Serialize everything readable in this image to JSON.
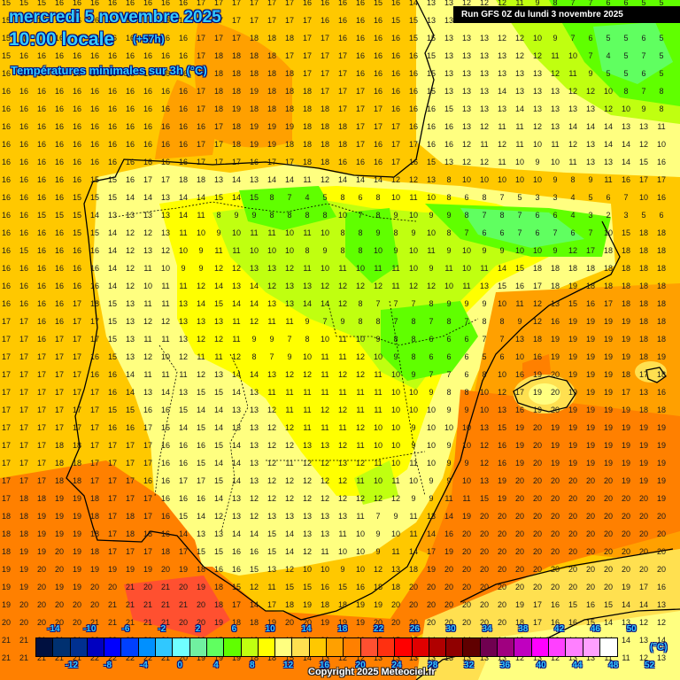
{
  "header": {
    "date": "mercredi 5 novembre 2025",
    "time": "10:00 locale",
    "lead": "(+57h)",
    "variable": "Températures minimales sur 3h (°C)",
    "run": "Run GFS 0Z du lundi 3 novembre 2025"
  },
  "legend": {
    "unit": "(°C)",
    "top_labels": [
      "-14",
      "-10",
      "-6",
      "-2",
      "2",
      "6",
      "10",
      "14",
      "18",
      "22",
      "26",
      "30",
      "34",
      "38",
      "42",
      "46",
      "50"
    ],
    "bottom_labels": [
      "-12",
      "-8",
      "-4",
      "0",
      "4",
      "8",
      "12",
      "16",
      "20",
      "24",
      "28",
      "32",
      "36",
      "40",
      "44",
      "48",
      "52"
    ],
    "colors": [
      "#001040",
      "#003070",
      "#003090",
      "#0000c0",
      "#0000ff",
      "#0040ff",
      "#0090ff",
      "#30c8ff",
      "#70ffff",
      "#70f0a0",
      "#60ff60",
      "#60ff00",
      "#c0ff10",
      "#ffff00",
      "#ffff80",
      "#ffe050",
      "#ffc800",
      "#ffa000",
      "#ff8000",
      "#ff5030",
      "#ff3010",
      "#ff0000",
      "#e00000",
      "#b00000",
      "#900000",
      "#600000",
      "#700050",
      "#a00080",
      "#c000c0",
      "#ff00ff",
      "#ff40ff",
      "#ff80ff",
      "#ffa0ff",
      "#ffffff"
    ]
  },
  "footer": {
    "copyright": "Copyright 2025 Meteociel.fr"
  },
  "chart_data": {
    "type": "heatmap",
    "title": "Températures minimales sur 3h (°C)",
    "subtitle": "mercredi 5 novembre 2025 10:00 locale (+57h) — Run GFS 0Z du lundi 3 novembre 2025",
    "region": "Iberian Peninsula / Western Mediterranean",
    "grid_spacing_px": 20,
    "grid": [
      [
        15,
        15,
        15,
        16,
        16,
        16,
        16,
        16,
        16,
        16,
        16,
        17,
        17,
        17,
        17,
        17,
        17,
        16,
        16,
        16,
        16,
        15,
        16,
        14,
        13,
        13,
        12,
        12,
        12,
        11,
        9,
        8,
        7,
        7,
        6,
        6,
        5,
        5
      ],
      [
        15,
        15,
        15,
        16,
        16,
        16,
        16,
        16,
        16,
        16,
        16,
        17,
        17,
        17,
        17,
        17,
        17,
        17,
        16,
        16,
        16,
        16,
        15,
        15,
        13,
        13,
        13,
        12,
        12,
        11,
        11,
        9,
        7,
        5,
        7,
        5,
        7,
        6
      ],
      [
        15,
        16,
        16,
        16,
        16,
        16,
        16,
        16,
        16,
        16,
        16,
        17,
        17,
        17,
        18,
        18,
        18,
        17,
        17,
        16,
        16,
        16,
        16,
        15,
        15,
        13,
        13,
        13,
        12,
        12,
        10,
        9,
        7,
        6,
        5,
        5,
        6,
        5
      ],
      [
        15,
        16,
        16,
        16,
        16,
        16,
        16,
        16,
        16,
        16,
        16,
        17,
        18,
        18,
        18,
        18,
        17,
        17,
        17,
        17,
        16,
        16,
        16,
        16,
        15,
        13,
        13,
        13,
        13,
        12,
        12,
        11,
        10,
        7,
        4,
        5,
        7,
        5
      ],
      [
        16,
        16,
        16,
        16,
        16,
        16,
        16,
        16,
        16,
        16,
        16,
        17,
        18,
        18,
        18,
        18,
        18,
        17,
        17,
        17,
        16,
        16,
        16,
        16,
        15,
        13,
        13,
        13,
        13,
        13,
        13,
        12,
        11,
        9,
        5,
        5,
        6,
        5
      ],
      [
        16,
        16,
        16,
        16,
        16,
        16,
        16,
        16,
        16,
        16,
        16,
        17,
        18,
        18,
        19,
        18,
        18,
        18,
        17,
        17,
        17,
        16,
        16,
        16,
        15,
        13,
        13,
        13,
        14,
        13,
        13,
        13,
        12,
        12,
        10,
        8,
        7,
        8
      ],
      [
        16,
        16,
        16,
        16,
        16,
        16,
        16,
        16,
        16,
        16,
        16,
        17,
        18,
        19,
        18,
        18,
        18,
        18,
        18,
        17,
        17,
        17,
        16,
        16,
        16,
        15,
        13,
        13,
        13,
        14,
        13,
        13,
        13,
        13,
        12,
        10,
        9,
        8
      ],
      [
        16,
        16,
        16,
        16,
        16,
        16,
        16,
        16,
        16,
        16,
        16,
        16,
        17,
        18,
        19,
        19,
        19,
        18,
        18,
        18,
        17,
        17,
        17,
        16,
        16,
        16,
        13,
        12,
        11,
        11,
        12,
        13,
        14,
        14,
        14,
        13,
        13,
        11
      ],
      [
        16,
        16,
        16,
        16,
        16,
        16,
        16,
        16,
        16,
        16,
        16,
        17,
        17,
        18,
        19,
        19,
        18,
        18,
        18,
        18,
        17,
        16,
        17,
        17,
        16,
        16,
        12,
        11,
        12,
        11,
        10,
        11,
        12,
        13,
        14,
        14,
        12,
        10
      ],
      [
        16,
        16,
        16,
        16,
        16,
        16,
        16,
        16,
        16,
        16,
        16,
        17,
        17,
        17,
        16,
        17,
        17,
        18,
        18,
        16,
        16,
        16,
        17,
        16,
        15,
        13,
        12,
        12,
        11,
        10,
        9,
        10,
        11,
        13,
        13,
        14,
        15,
        16
      ],
      [
        16,
        16,
        16,
        16,
        16,
        15,
        15,
        16,
        17,
        17,
        18,
        18,
        13,
        14,
        13,
        14,
        14,
        11,
        12,
        14,
        14,
        14,
        12,
        12,
        13,
        8,
        10,
        10,
        10,
        10,
        10,
        9,
        8,
        9,
        11,
        16,
        17,
        17
      ],
      [
        16,
        16,
        16,
        16,
        15,
        15,
        15,
        14,
        14,
        13,
        14,
        14,
        15,
        14,
        15,
        8,
        7,
        4,
        5,
        8,
        6,
        8,
        10,
        11,
        10,
        8,
        6,
        8,
        7,
        5,
        3,
        3,
        4,
        5,
        6,
        7,
        10,
        16
      ],
      [
        16,
        16,
        15,
        15,
        15,
        14,
        13,
        13,
        13,
        13,
        14,
        11,
        8,
        9,
        9,
        8,
        8,
        8,
        8,
        10,
        7,
        8,
        9,
        10,
        9,
        9,
        8,
        7,
        8,
        7,
        6,
        6,
        4,
        3,
        2,
        3,
        5,
        6
      ],
      [
        16,
        16,
        16,
        16,
        15,
        15,
        14,
        12,
        12,
        13,
        11,
        10,
        9,
        10,
        11,
        11,
        10,
        11,
        10,
        8,
        8,
        9,
        8,
        9,
        10,
        8,
        7,
        6,
        6,
        7,
        6,
        7,
        6,
        7,
        10,
        15,
        18,
        18
      ],
      [
        16,
        15,
        16,
        16,
        16,
        16,
        14,
        12,
        13,
        12,
        10,
        9,
        11,
        11,
        10,
        10,
        10,
        8,
        9,
        8,
        8,
        10,
        9,
        10,
        11,
        9,
        10,
        9,
        9,
        10,
        10,
        9,
        12,
        17,
        18,
        18,
        18,
        18
      ],
      [
        16,
        16,
        16,
        16,
        16,
        16,
        14,
        12,
        11,
        10,
        9,
        9,
        12,
        12,
        13,
        13,
        12,
        11,
        10,
        11,
        10,
        11,
        11,
        10,
        9,
        11,
        10,
        11,
        14,
        15,
        18,
        18,
        18,
        18,
        18,
        18,
        18,
        18
      ],
      [
        16,
        16,
        16,
        16,
        16,
        16,
        14,
        12,
        10,
        11,
        11,
        12,
        14,
        13,
        14,
        12,
        13,
        13,
        12,
        12,
        12,
        12,
        11,
        12,
        12,
        10,
        11,
        13,
        15,
        16,
        17,
        18,
        19,
        18,
        18,
        18,
        18,
        18
      ],
      [
        16,
        16,
        16,
        16,
        17,
        18,
        15,
        13,
        11,
        11,
        13,
        14,
        15,
        14,
        14,
        13,
        13,
        14,
        14,
        12,
        8,
        7,
        7,
        7,
        8,
        9,
        9,
        9,
        10,
        11,
        12,
        13,
        15,
        16,
        17,
        18,
        18,
        18
      ],
      [
        17,
        17,
        16,
        16,
        17,
        17,
        15,
        13,
        12,
        12,
        13,
        13,
        13,
        11,
        12,
        11,
        11,
        9,
        7,
        9,
        8,
        8,
        7,
        8,
        7,
        8,
        7,
        8,
        8,
        9,
        12,
        16,
        19,
        19,
        19,
        19,
        18,
        18
      ],
      [
        17,
        17,
        16,
        17,
        17,
        17,
        15,
        13,
        11,
        11,
        13,
        12,
        12,
        11,
        9,
        9,
        7,
        8,
        10,
        11,
        10,
        9,
        8,
        8,
        6,
        6,
        6,
        7,
        7,
        13,
        18,
        19,
        19,
        19,
        19,
        19,
        18,
        18
      ],
      [
        17,
        17,
        17,
        17,
        17,
        16,
        15,
        13,
        12,
        10,
        12,
        11,
        11,
        12,
        8,
        7,
        9,
        10,
        11,
        11,
        12,
        10,
        9,
        8,
        6,
        6,
        6,
        5,
        6,
        10,
        16,
        19,
        19,
        19,
        19,
        19,
        18,
        19
      ],
      [
        17,
        17,
        17,
        17,
        17,
        16,
        16,
        14,
        11,
        11,
        11,
        12,
        13,
        14,
        14,
        13,
        12,
        12,
        11,
        12,
        12,
        11,
        10,
        9,
        7,
        7,
        6,
        8,
        10,
        16,
        19,
        20,
        19,
        19,
        19,
        18,
        17,
        18
      ],
      [
        17,
        17,
        17,
        17,
        17,
        17,
        16,
        14,
        13,
        14,
        13,
        15,
        15,
        14,
        13,
        11,
        11,
        11,
        11,
        11,
        11,
        11,
        10,
        10,
        9,
        8,
        8,
        10,
        12,
        17,
        19,
        20,
        19,
        19,
        19,
        17,
        13,
        16
      ],
      [
        17,
        17,
        17,
        17,
        17,
        17,
        15,
        15,
        16,
        16,
        15,
        14,
        14,
        13,
        13,
        12,
        11,
        11,
        12,
        12,
        11,
        11,
        10,
        10,
        10,
        9,
        9,
        10,
        13,
        16,
        19,
        20,
        19,
        19,
        19,
        19,
        18,
        18
      ],
      [
        17,
        17,
        17,
        17,
        17,
        17,
        16,
        16,
        17,
        15,
        14,
        15,
        14,
        13,
        13,
        12,
        12,
        11,
        11,
        11,
        12,
        10,
        10,
        9,
        10,
        10,
        10,
        13,
        15,
        19,
        20,
        19,
        19,
        19,
        19,
        19,
        19,
        19
      ],
      [
        17,
        17,
        17,
        18,
        18,
        17,
        17,
        17,
        17,
        16,
        16,
        16,
        15,
        14,
        13,
        12,
        12,
        13,
        13,
        12,
        11,
        10,
        10,
        9,
        10,
        9,
        10,
        12,
        16,
        19,
        20,
        19,
        19,
        19,
        19,
        19,
        19,
        19
      ],
      [
        17,
        17,
        17,
        18,
        18,
        17,
        17,
        17,
        17,
        16,
        16,
        15,
        14,
        14,
        13,
        12,
        11,
        12,
        12,
        13,
        12,
        11,
        10,
        11,
        10,
        9,
        9,
        12,
        16,
        19,
        20,
        19,
        19,
        19,
        19,
        19,
        19,
        19
      ],
      [
        17,
        17,
        17,
        18,
        18,
        17,
        17,
        17,
        16,
        16,
        17,
        17,
        15,
        14,
        13,
        12,
        12,
        12,
        12,
        12,
        11,
        10,
        11,
        10,
        9,
        9,
        10,
        13,
        19,
        20,
        20,
        20,
        20,
        20,
        20,
        19,
        19,
        19
      ],
      [
        17,
        18,
        18,
        19,
        19,
        18,
        17,
        17,
        17,
        16,
        16,
        16,
        14,
        13,
        12,
        12,
        12,
        12,
        12,
        12,
        12,
        12,
        12,
        9,
        9,
        11,
        11,
        15,
        19,
        20,
        20,
        20,
        20,
        20,
        20,
        20,
        20,
        19
      ],
      [
        18,
        18,
        19,
        19,
        19,
        18,
        17,
        18,
        17,
        16,
        15,
        14,
        12,
        13,
        12,
        13,
        13,
        13,
        13,
        13,
        11,
        7,
        9,
        11,
        13,
        14,
        19,
        20,
        20,
        20,
        20,
        20,
        20,
        20,
        20,
        20,
        20,
        20
      ],
      [
        18,
        18,
        19,
        19,
        19,
        18,
        17,
        18,
        18,
        16,
        14,
        13,
        13,
        14,
        14,
        15,
        14,
        13,
        13,
        11,
        10,
        9,
        10,
        11,
        14,
        16,
        20,
        20,
        20,
        20,
        20,
        20,
        20,
        20,
        20,
        20,
        20,
        20
      ],
      [
        18,
        19,
        19,
        20,
        19,
        18,
        17,
        17,
        17,
        18,
        17,
        15,
        15,
        16,
        16,
        15,
        14,
        12,
        11,
        10,
        10,
        9,
        11,
        14,
        17,
        19,
        20,
        20,
        20,
        20,
        20,
        20,
        20,
        20,
        20,
        20,
        20,
        20
      ],
      [
        19,
        19,
        20,
        20,
        19,
        19,
        19,
        19,
        19,
        20,
        19,
        18,
        16,
        16,
        15,
        13,
        12,
        10,
        10,
        9,
        10,
        12,
        13,
        18,
        19,
        20,
        20,
        20,
        20,
        20,
        20,
        20,
        20,
        20,
        20,
        20,
        20,
        20
      ],
      [
        19,
        19,
        20,
        19,
        19,
        20,
        20,
        21,
        20,
        21,
        20,
        19,
        18,
        15,
        12,
        11,
        15,
        15,
        16,
        15,
        16,
        18,
        18,
        20,
        20,
        20,
        20,
        20,
        20,
        20,
        20,
        20,
        20,
        20,
        20,
        19,
        17,
        16
      ],
      [
        19,
        20,
        20,
        20,
        20,
        20,
        21,
        21,
        21,
        21,
        21,
        20,
        18,
        17,
        14,
        17,
        18,
        19,
        18,
        18,
        19,
        19,
        20,
        20,
        20,
        20,
        20,
        20,
        20,
        19,
        17,
        16,
        15,
        16,
        15,
        14,
        14,
        13
      ],
      [
        20,
        20,
        20,
        20,
        20,
        21,
        21,
        21,
        21,
        21,
        20,
        20,
        19,
        18,
        18,
        19,
        20,
        20,
        19,
        19,
        19,
        20,
        20,
        20,
        20,
        20,
        20,
        20,
        20,
        18,
        17,
        16,
        16,
        15,
        14,
        13,
        12,
        12
      ],
      [
        21,
        21,
        21,
        21,
        21,
        22,
        22,
        22,
        21,
        21,
        19,
        16,
        15,
        18,
        19,
        19,
        19,
        20,
        20,
        18,
        16,
        15,
        15,
        15,
        14,
        14,
        14,
        14,
        14,
        13,
        14,
        13,
        14,
        14,
        14,
        14,
        13,
        14
      ],
      [
        21,
        21,
        21,
        21,
        21,
        22,
        22,
        22,
        22,
        21,
        20,
        19,
        19,
        19,
        18,
        18,
        15,
        14,
        13,
        12,
        12,
        13,
        13,
        13,
        13,
        13,
        13,
        13,
        13,
        12,
        13,
        12,
        13,
        13,
        11,
        11,
        12,
        13
      ]
    ]
  }
}
